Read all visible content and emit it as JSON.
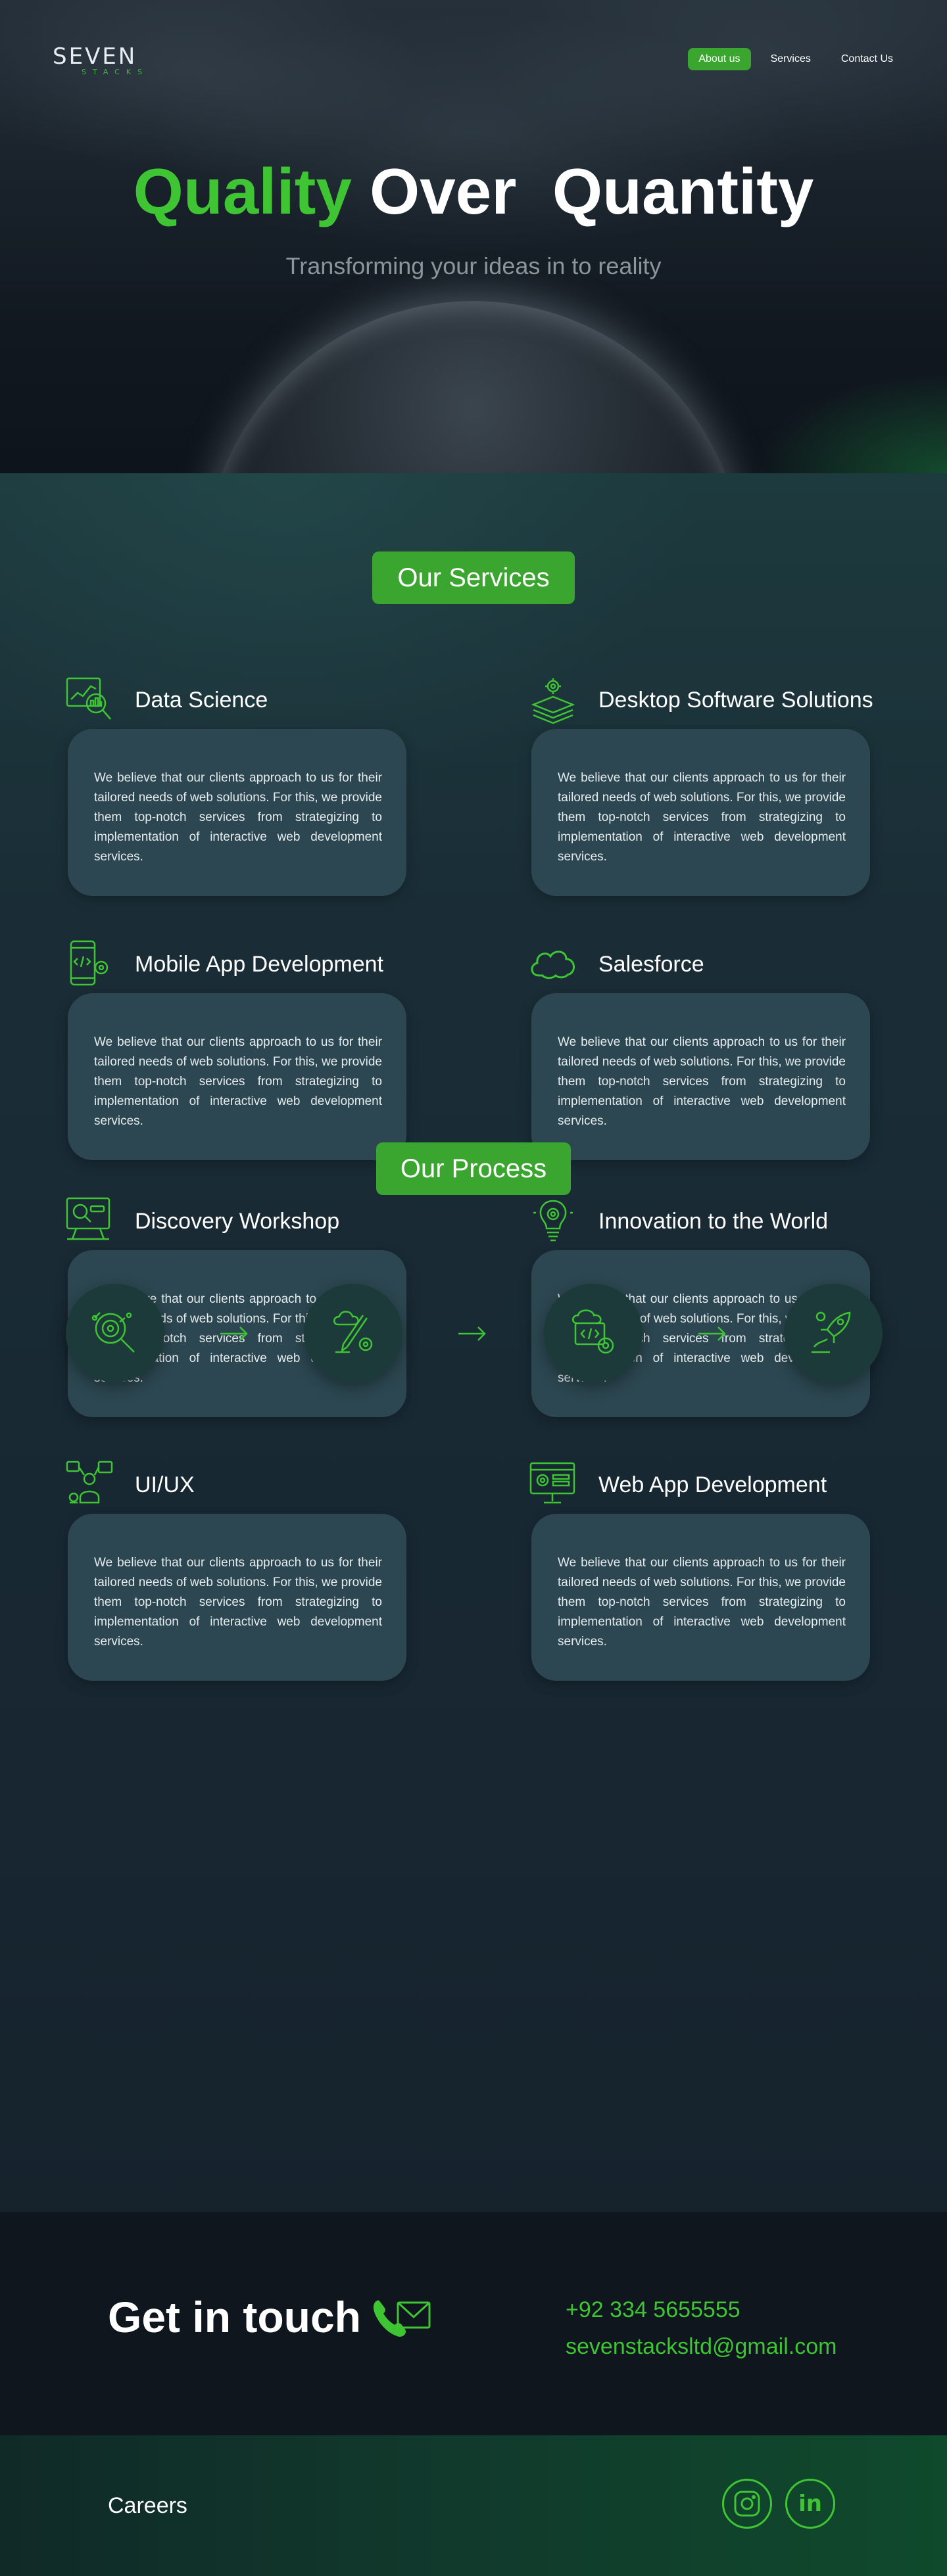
{
  "brand": {
    "name": "SEVEN",
    "sub": "STACKS",
    "accent": "#3fc534",
    "button_green": "#3aa52f"
  },
  "nav": {
    "items": [
      {
        "label": "About us",
        "active": true
      },
      {
        "label": "Services",
        "active": false
      },
      {
        "label": "Contact Us",
        "active": false
      }
    ]
  },
  "hero": {
    "title_highlight": "Quality",
    "title_rest": " Over  Quantity",
    "subtitle": "Transforming your ideas in to reality"
  },
  "services": {
    "heading": "Our Services",
    "items": [
      {
        "title": "Data Science",
        "icon": "data-science-icon",
        "text": "We believe that our clients approach to us for their tailored needs of web solutions. For this, we provide them top-notch services from strategizing to implementation  of interactive web development services."
      },
      {
        "title": "Desktop Software Solutions",
        "icon": "desktop-software-icon",
        "text": "We believe that our clients approach to us for their tailored needs of web solutions. For this, we provide them top-notch services from strategizing to implementation  of interactive web development services."
      },
      {
        "title": "Mobile App Development",
        "icon": "mobile-app-icon",
        "text": "We believe that our clients approach to us for their tailored needs of web solutions. For this, we provide them top-notch services from strategizing to implementation  of interactive web development services."
      },
      {
        "title": "Salesforce",
        "icon": "salesforce-cloud-icon",
        "text": "We believe that our clients approach to us for their tailored needs of web solutions. For this, we provide them top-notch services from strategizing to implementation  of interactive web development services."
      },
      {
        "title": "Discovery Workshop",
        "icon": "discovery-workshop-icon",
        "text": "We believe that our clients approach to us for their tailored needs of web solutions. For this, we provide them top-notch services from strategizing to implementation  of interactive web development services."
      },
      {
        "title": "Innovation to the World",
        "icon": "innovation-bulb-icon",
        "text": "We believe that our clients approach to us for their tailored needs of web solutions. For this, we provide them top-notch services from strategizing to implementation  of interactive web development services."
      },
      {
        "title": "UI/UX",
        "icon": "ui-ux-icon",
        "text": "We believe that our clients approach to us for their tailored needs of web solutions. For this, we provide them top-notch services from strategizing to implementation  of interactive web development services."
      },
      {
        "title": "Web App Development",
        "icon": "web-app-icon",
        "text": "We believe that our clients approach to us for their tailored needs of web solutions. For this, we provide them top-notch services from strategizing to implementation  of interactive web development services."
      }
    ]
  },
  "process": {
    "heading": "Our Process",
    "steps": [
      {
        "icon": "research-magnifier-icon"
      },
      {
        "icon": "design-pencil-icon"
      },
      {
        "icon": "development-code-icon"
      },
      {
        "icon": "launch-rocket-icon"
      }
    ]
  },
  "contact": {
    "title": "Get in touch",
    "phone": "+92 334 5655555",
    "email": "sevenstacksltd@gmail.com"
  },
  "footer": {
    "careers": "Careers",
    "instagram_icon": "instagram-icon",
    "linkedin_text": "in"
  }
}
